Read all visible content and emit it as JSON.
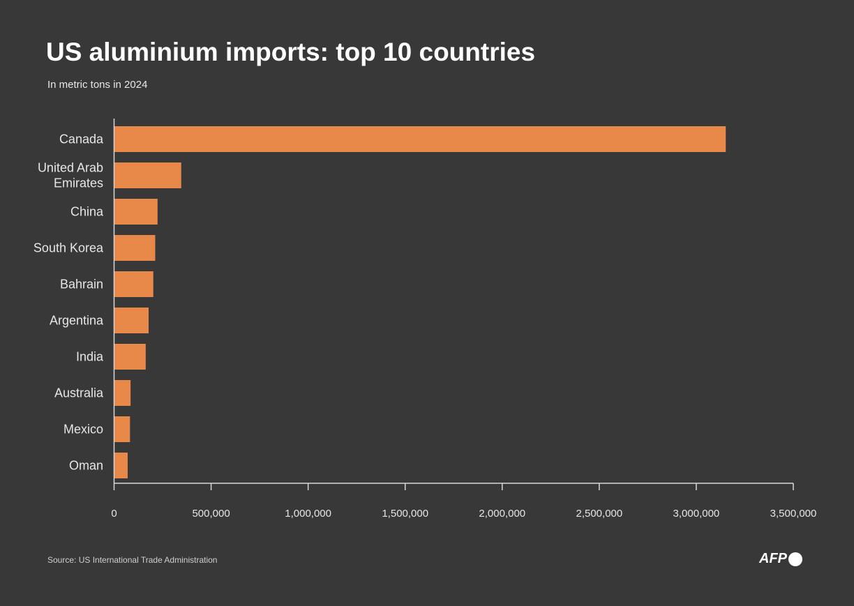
{
  "chart_data": {
    "type": "bar",
    "orientation": "horizontal",
    "title": "US aluminium imports: top 10 countries",
    "subtitle": "In metric tons in 2024",
    "categories": [
      [
        "Canada"
      ],
      [
        "United Arab",
        "Emirates"
      ],
      [
        "China"
      ],
      [
        "South Korea"
      ],
      [
        "Bahrain"
      ],
      [
        "Argentina"
      ],
      [
        "India"
      ],
      [
        "Australia"
      ],
      [
        "Mexico"
      ],
      [
        "Oman"
      ]
    ],
    "values": [
      3152000,
      346000,
      224000,
      212000,
      202000,
      178000,
      163000,
      85000,
      82000,
      70000
    ],
    "xlim": [
      0,
      3500000
    ],
    "xticks": [
      0,
      500000,
      1000000,
      1500000,
      2000000,
      2500000,
      3000000,
      3500000
    ],
    "xtick_labels": [
      "0",
      "500,000",
      "1,000,000",
      "1,500,000",
      "2,000,000",
      "2,500,000",
      "3,000,000",
      "3,500,000"
    ],
    "grid": false,
    "bar_color": "#e8894a",
    "background": "#383838"
  },
  "source": "Source:  US International Trade Administration",
  "logo": "AFP"
}
